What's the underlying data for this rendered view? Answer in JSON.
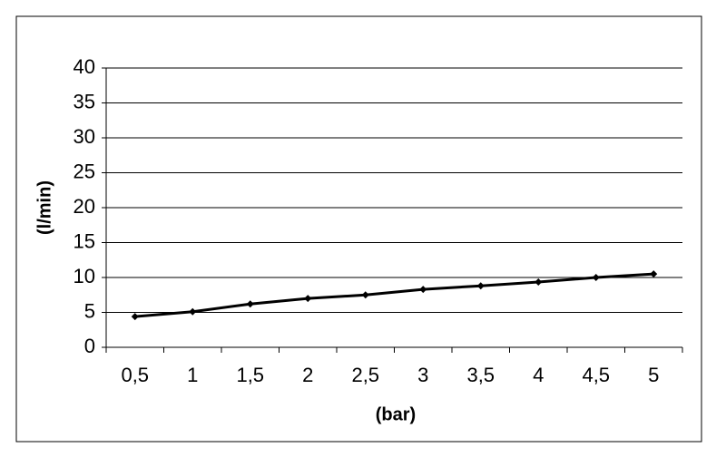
{
  "chart_data": {
    "type": "line",
    "x_label": "(bar)",
    "y_label": "(l/min)",
    "categories": [
      "0,5",
      "1",
      "1,5",
      "2",
      "2,5",
      "3",
      "3,5",
      "4",
      "4,5",
      "5"
    ],
    "series": [
      {
        "color": "#000000",
        "values": [
          4.4,
          5.1,
          6.2,
          7.0,
          7.5,
          8.3,
          8.8,
          9.35,
          10.0,
          10.5
        ]
      }
    ],
    "ylim": [
      0,
      40
    ],
    "yticks": [
      0,
      5,
      10,
      15,
      20,
      25,
      30,
      35,
      40
    ],
    "grid": true
  }
}
